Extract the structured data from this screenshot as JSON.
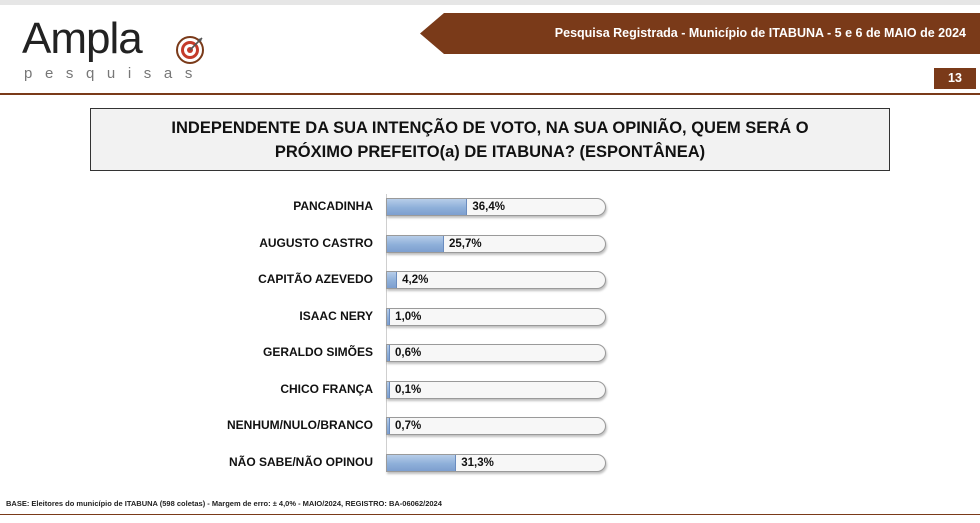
{
  "header": {
    "logo_word": "Ampla",
    "logo_sub": "pesquisas",
    "banner": "Pesquisa Registrada - Município de ITABUNA - 5 e 6 de MAIO de 2024",
    "page_number": "13"
  },
  "colors": {
    "brand": "#7a3a19",
    "bar": "#8eafd9"
  },
  "chart_data": {
    "type": "bar",
    "orientation": "horizontal",
    "title": "INDEPENDENTE DA SUA INTENÇÃO DE VOTO, NA SUA OPINIÃO, QUEM SERÁ O PRÓXIMO PREFEITO(a) DE ITABUNA? (ESPONTÂNEA)",
    "categories": [
      "PANCADINHA",
      "AUGUSTO CASTRO",
      "CAPITÃO AZEVEDO",
      "ISAAC NERY",
      "GERALDO SIMÕES",
      "CHICO FRANÇA",
      "NENHUM/NULO/BRANCO",
      "NÃO SABE/NÃO OPINOU"
    ],
    "values": [
      36.4,
      25.7,
      4.2,
      1.0,
      0.6,
      0.1,
      0.7,
      31.3
    ],
    "value_labels": [
      "36,4%",
      "25,7%",
      "4,2%",
      "1,0%",
      "0,6%",
      "0,1%",
      "0,7%",
      "31,3%"
    ],
    "xlim": [
      0,
      100
    ],
    "grid": false,
    "legend": "none"
  },
  "footer": {
    "base_note": "BASE: Eleitores do município de ITABUNA (598 coletas) - Margem de erro: ± 4,0% - MAIO/2024, REGISTRO: BA-06062/2024"
  }
}
